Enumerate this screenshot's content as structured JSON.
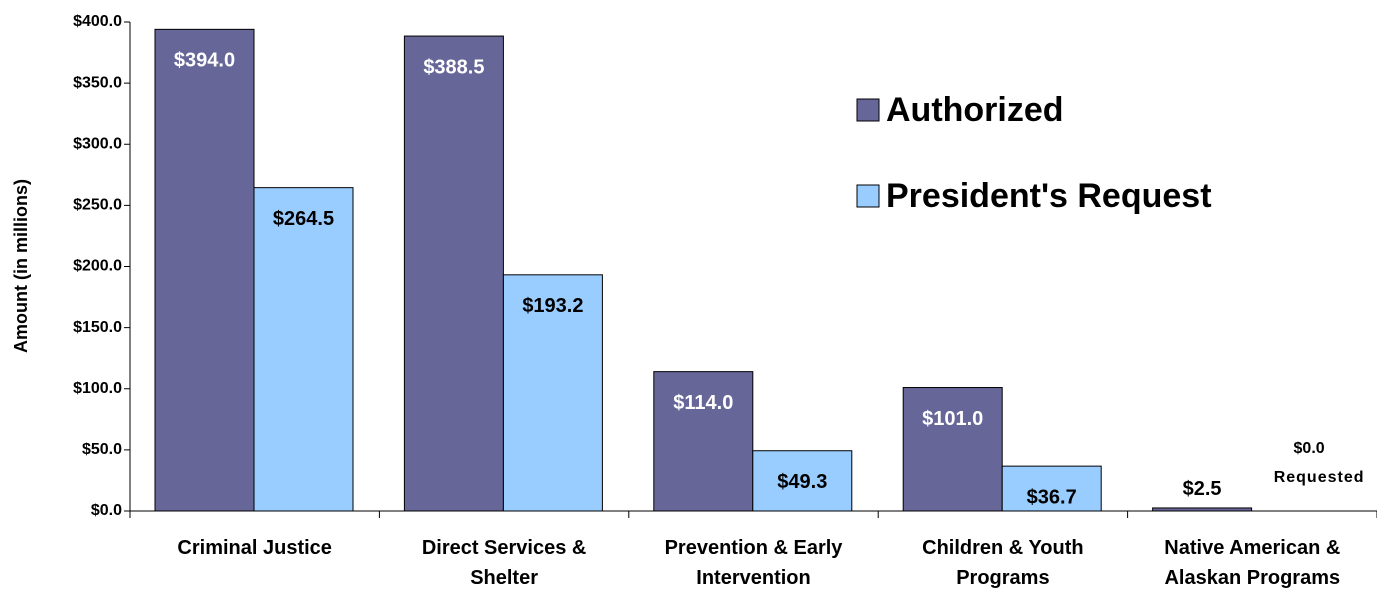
{
  "chart_data": {
    "type": "bar",
    "y_label": "Amount (in millions)",
    "categories": [
      "Criminal Justice",
      "Direct Services & Shelter",
      "Prevention & Early Intervention",
      "Children & Youth Programs",
      "Native American & Alaskan Programs"
    ],
    "series": [
      {
        "name": "Authorized",
        "color": "#666699",
        "values": [
          394.0,
          388.5,
          114.0,
          101.0,
          2.5
        ],
        "value_labels": [
          "$394.0",
          "$388.5",
          "$114.0",
          "$101.0",
          "$2.5"
        ]
      },
      {
        "name": "President's Request",
        "color": "#99ccff",
        "values": [
          264.5,
          193.2,
          49.3,
          36.7,
          0.0
        ],
        "value_labels": [
          "$264.5",
          "$193.2",
          "$49.3",
          "$36.7",
          "$0.0"
        ]
      }
    ],
    "annotations": [
      "Requested"
    ],
    "ylim": [
      0,
      400
    ],
    "yticks": [
      {
        "value": 0,
        "label": "$0.0"
      },
      {
        "value": 50,
        "label": "$50.0"
      },
      {
        "value": 100,
        "label": "$100.0"
      },
      {
        "value": 150,
        "label": "$150.0"
      },
      {
        "value": 200,
        "label": "$200.0"
      },
      {
        "value": 250,
        "label": "$250.0"
      },
      {
        "value": 300,
        "label": "$300.0"
      },
      {
        "value": 350,
        "label": "$350.0"
      },
      {
        "value": 400,
        "label": "$400.0"
      }
    ],
    "grid": false
  }
}
